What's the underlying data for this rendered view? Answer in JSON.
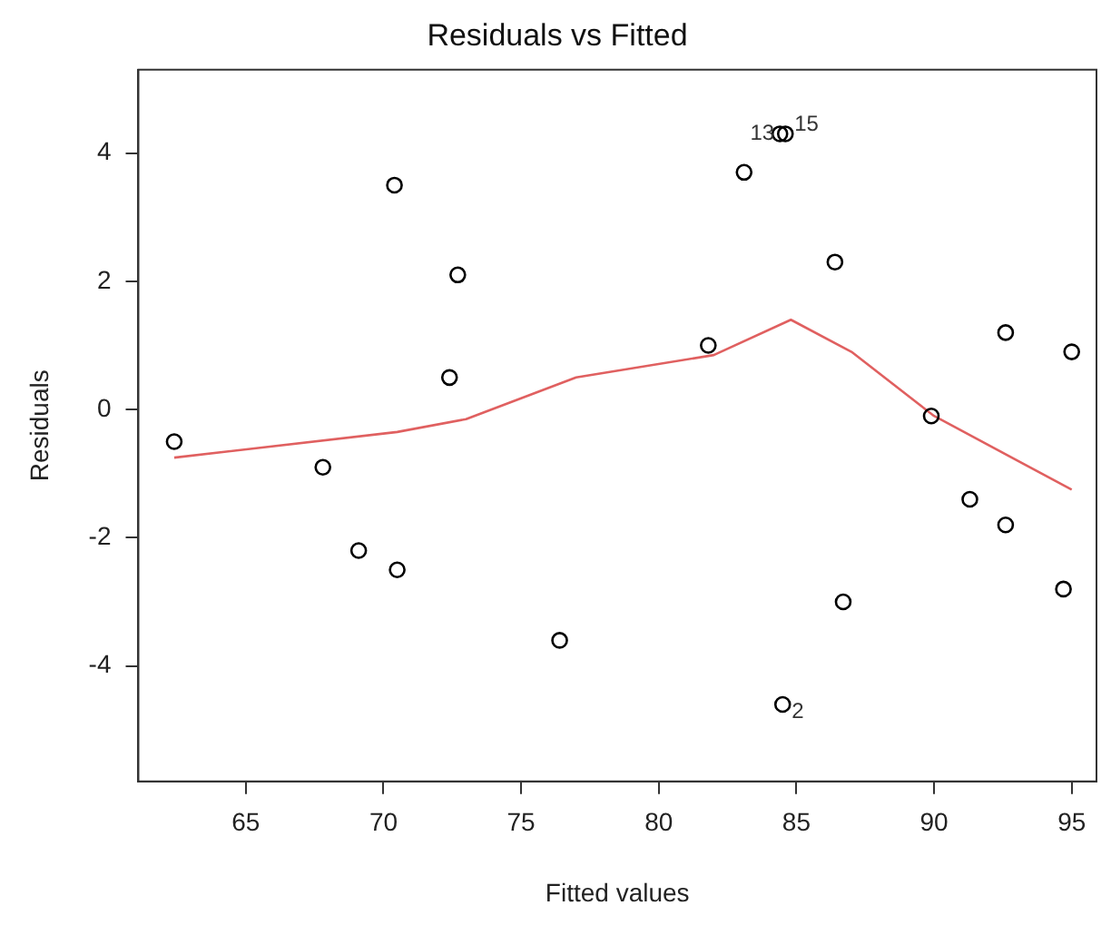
{
  "chart_data": {
    "type": "scatter",
    "title": "Residuals vs Fitted",
    "xlabel": "Fitted values",
    "ylabel": "Residuals",
    "xlim": [
      61.1,
      95.9
    ],
    "ylim": [
      -5.8,
      5.3
    ],
    "xticks": [
      65,
      70,
      75,
      80,
      85,
      90,
      95
    ],
    "yticks": [
      -4,
      -2,
      0,
      2,
      4
    ],
    "grid": false,
    "legend": false,
    "marker": "circle",
    "series": [
      {
        "color": "#000000",
        "x": [
          62.4,
          67.8,
          69.1,
          70.4,
          70.5,
          72.4,
          72.7,
          76.4,
          81.8,
          83.1,
          84.4,
          84.6,
          84.5,
          86.4,
          86.7,
          89.9,
          91.3,
          92.6,
          92.6,
          94.7,
          95.0
        ],
        "values": [
          -0.5,
          -0.9,
          -2.2,
          3.5,
          -2.5,
          0.5,
          2.1,
          -3.6,
          1.0,
          3.7,
          4.3,
          4.3,
          -4.6,
          2.3,
          -3.0,
          -0.1,
          -1.4,
          -1.8,
          1.2,
          -2.8,
          0.9
        ]
      },
      {
        "type": "line",
        "color": "#e06060",
        "marker": "none",
        "x": [
          62.4,
          70.5,
          73,
          77,
          82,
          84.8,
          87,
          90,
          95
        ],
        "values": [
          -0.75,
          -0.35,
          -0.15,
          0.5,
          0.85,
          1.4,
          0.9,
          -0.1,
          -1.25
        ]
      }
    ],
    "annotations": [
      {
        "text": "13",
        "x": 84.4,
        "y": 4.3
      },
      {
        "text": "15",
        "x": 84.6,
        "y": 4.3
      },
      {
        "text": "2",
        "x": 84.5,
        "y": -4.6
      }
    ]
  }
}
